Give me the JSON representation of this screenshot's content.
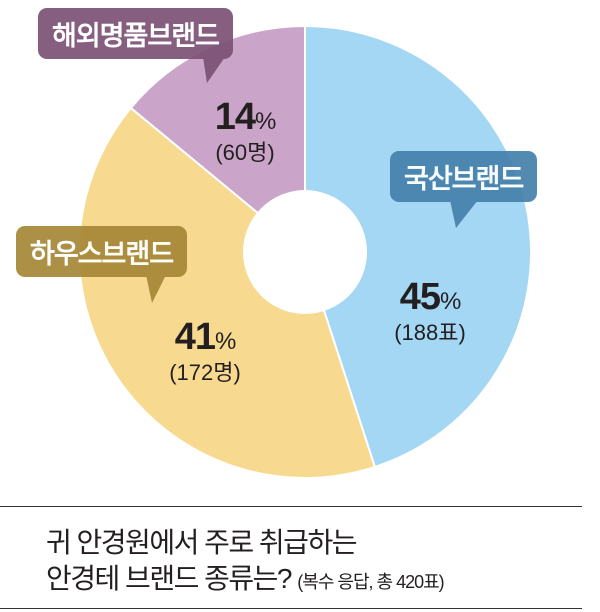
{
  "chart_data": {
    "type": "pie",
    "donut": true,
    "title_lines": [
      "귀 안경원에서 주로 취급하는",
      "안경테 브랜드 종류는?"
    ],
    "note": "(복수 응답, 총 420표)",
    "total": 420,
    "slices": [
      {
        "label": "국산브랜드",
        "percent": 45,
        "percent_text": "45",
        "count_text": "(188표)",
        "value": 188,
        "color": "#a3d7f3",
        "label_color": "#4682ad"
      },
      {
        "label": "하우스브랜드",
        "percent": 41,
        "percent_text": "41",
        "count_text": "(172명)",
        "value": 172,
        "color": "#f7da90",
        "label_color": "#a68837"
      },
      {
        "label": "해외명품브랜드",
        "percent": 14,
        "percent_text": "14",
        "count_text": "(60명)",
        "value": 60,
        "color": "#caa4c9",
        "label_color": "#7c5277"
      }
    ],
    "percent_sign": "%"
  }
}
